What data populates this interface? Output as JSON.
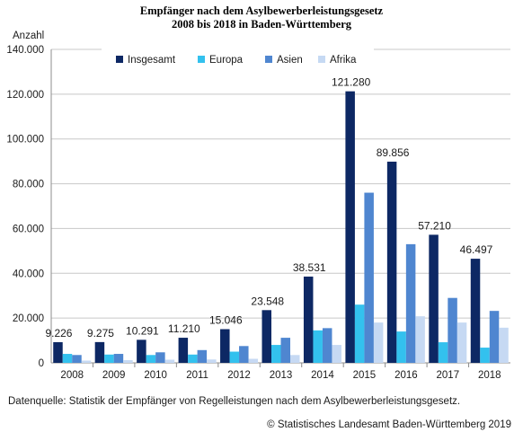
{
  "chart_data": {
    "type": "bar",
    "title_line1": "Empfänger nach dem Asylbewerberleistungsgesetz",
    "title_line2": "2008 bis 2018 in Baden-Württemberg",
    "ylabel": "Anzahl",
    "xlabel": "",
    "ylim": [
      0,
      140000
    ],
    "yticks": [
      "0",
      "20.000",
      "40.000",
      "60.000",
      "80.000",
      "100.000",
      "120.000",
      "140.000"
    ],
    "ytick_values": [
      0,
      20000,
      40000,
      60000,
      80000,
      100000,
      120000,
      140000
    ],
    "grid": true,
    "legend_position": "top",
    "categories": [
      "2008",
      "2009",
      "2010",
      "2011",
      "2012",
      "2013",
      "2014",
      "2015",
      "2016",
      "2017",
      "2018"
    ],
    "series": [
      {
        "name": "Insgesamt",
        "color": "#0d2864",
        "values": [
          9226,
          9275,
          10291,
          11210,
          15046,
          23548,
          38531,
          121280,
          89856,
          57210,
          46497
        ]
      },
      {
        "name": "Europa",
        "color": "#33c1ee",
        "values": [
          4000,
          3700,
          3500,
          3700,
          5000,
          8000,
          14500,
          26000,
          14000,
          9200,
          6800
        ]
      },
      {
        "name": "Asien",
        "color": "#4f86d0",
        "values": [
          3500,
          4000,
          4700,
          5700,
          7500,
          11200,
          15500,
          76000,
          53000,
          29000,
          23200
        ]
      },
      {
        "name": "Afrika",
        "color": "#c6d9f3",
        "values": [
          1000,
          1200,
          1400,
          1500,
          1800,
          3500,
          8000,
          18000,
          20800,
          18000,
          15700
        ]
      }
    ],
    "data_labels": [
      "9.226",
      "9.275",
      "10.291",
      "11.210",
      "15.046",
      "23.548",
      "38.531",
      "121.280",
      "89.856",
      "57.210",
      "46.497"
    ]
  },
  "footer": {
    "source": "Datenquelle: Statistik der Empfänger von Regelleistungen nach dem Asylbewerberleistungsgesetz.",
    "copyright": "© Statistisches Landesamt Baden-Württemberg 2019"
  }
}
